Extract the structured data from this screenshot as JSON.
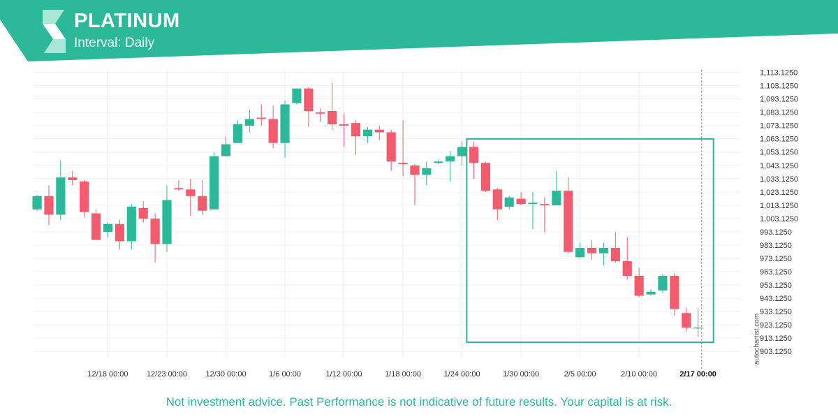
{
  "header": {
    "title": "PLATINUM",
    "interval": "Interval: Daily",
    "colors": {
      "banner": "#2bb99a",
      "logo_light": "#a8e6d6"
    }
  },
  "footer": {
    "disclaimer": "Not investment advice. Past Performance is not indicative of future results. Your capital is at risk."
  },
  "watermark": "autochartist.com",
  "chart_data": {
    "type": "candlestick",
    "title": "PLATINUM",
    "x_tick_labels": [
      {
        "label": "12/18 00:00",
        "index": 6
      },
      {
        "label": "12/23 00:00",
        "index": 11
      },
      {
        "label": "12/30 00:00",
        "index": 16
      },
      {
        "label": "1/6 00:00",
        "index": 21
      },
      {
        "label": "1/12 00:00",
        "index": 26
      },
      {
        "label": "1/18 00:00",
        "index": 31
      },
      {
        "label": "1/24 00:00",
        "index": 36
      },
      {
        "label": "1/30 00:00",
        "index": 41
      },
      {
        "label": "2/5 00:00",
        "index": 46
      },
      {
        "label": "2/10 00:00",
        "index": 51
      },
      {
        "label": "2/17 00:00",
        "index": 56,
        "highlight": true
      }
    ],
    "y_ticks": [
      903.125,
      913.125,
      923.125,
      933.125,
      943.125,
      953.125,
      963.125,
      973.125,
      983.125,
      993.125,
      1003.125,
      1013.125,
      1023.125,
      1033.125,
      1043.125,
      1053.125,
      1063.125,
      1073.125,
      1083.125,
      1093.125,
      1103.125,
      1113.125
    ],
    "y_tick_labels": [
      "903.1250",
      "913.1250",
      "923.1250",
      "933.1250",
      "943.1250",
      "953.1250",
      "963.1250",
      "973.1250",
      "983.1250",
      "993.1250",
      "1,003.1250",
      "1,013.1250",
      "1,023.1250",
      "1,033.1250",
      "1,043.1250",
      "1,053.1250",
      "1,063.1250",
      "1,073.1250",
      "1,083.1250",
      "1,093.1250",
      "1,103.1250",
      "1,113.1250"
    ],
    "ylim": [
      898.5,
      1115
    ],
    "index_range": [
      -0.3,
      57.5
    ],
    "grid": true,
    "colors": {
      "up": "#2bb99a",
      "down": "#f25c6e",
      "box": "#2bb99a",
      "axis_text": "#333333"
    },
    "candles": [
      {
        "o": 1010,
        "h": 1021,
        "l": 1009,
        "c": 1020
      },
      {
        "o": 1020,
        "h": 1028,
        "l": 998,
        "c": 1006
      },
      {
        "o": 1006,
        "h": 1047,
        "l": 1002,
        "c": 1034
      },
      {
        "o": 1034,
        "h": 1039,
        "l": 1028,
        "c": 1032
      },
      {
        "o": 1031,
        "h": 1032,
        "l": 1004,
        "c": 1008
      },
      {
        "o": 1007,
        "h": 1010,
        "l": 987,
        "c": 987
      },
      {
        "o": 993,
        "h": 1000,
        "l": 989,
        "c": 999
      },
      {
        "o": 999,
        "h": 1002,
        "l": 980,
        "c": 986
      },
      {
        "o": 986,
        "h": 1014,
        "l": 980,
        "c": 1012
      },
      {
        "o": 1011,
        "h": 1016,
        "l": 1000,
        "c": 1003
      },
      {
        "o": 1003,
        "h": 1007,
        "l": 970,
        "c": 984
      },
      {
        "o": 984,
        "h": 1028,
        "l": 978,
        "c": 1017
      },
      {
        "o": 1026,
        "h": 1032,
        "l": 1024,
        "c": 1025
      },
      {
        "o": 1025,
        "h": 1033,
        "l": 1005,
        "c": 1020
      },
      {
        "o": 1020,
        "h": 1032,
        "l": 1006,
        "c": 1009
      },
      {
        "o": 1010,
        "h": 1053,
        "l": 1010,
        "c": 1050
      },
      {
        "o": 1050,
        "h": 1065,
        "l": 1050,
        "c": 1059
      },
      {
        "o": 1060,
        "h": 1077,
        "l": 1060,
        "c": 1074
      },
      {
        "o": 1073,
        "h": 1085,
        "l": 1068,
        "c": 1078
      },
      {
        "o": 1079,
        "h": 1089,
        "l": 1073,
        "c": 1078
      },
      {
        "o": 1078,
        "h": 1088,
        "l": 1056,
        "c": 1060
      },
      {
        "o": 1060,
        "h": 1092,
        "l": 1049,
        "c": 1089
      },
      {
        "o": 1090,
        "h": 1101,
        "l": 1089,
        "c": 1101
      },
      {
        "o": 1101,
        "h": 1102,
        "l": 1072,
        "c": 1084
      },
      {
        "o": 1083,
        "h": 1086,
        "l": 1076,
        "c": 1082
      },
      {
        "o": 1084,
        "h": 1105,
        "l": 1070,
        "c": 1074
      },
      {
        "o": 1074,
        "h": 1082,
        "l": 1057,
        "c": 1073
      },
      {
        "o": 1075,
        "h": 1077,
        "l": 1051,
        "c": 1065
      },
      {
        "o": 1065,
        "h": 1072,
        "l": 1060,
        "c": 1070
      },
      {
        "o": 1070,
        "h": 1073,
        "l": 1062,
        "c": 1068
      },
      {
        "o": 1068,
        "h": 1070,
        "l": 1039,
        "c": 1046
      },
      {
        "o": 1045,
        "h": 1077,
        "l": 1035,
        "c": 1044
      },
      {
        "o": 1043,
        "h": 1044,
        "l": 1013,
        "c": 1036
      },
      {
        "o": 1036,
        "h": 1046,
        "l": 1028,
        "c": 1041
      },
      {
        "o": 1045,
        "h": 1047,
        "l": 1044,
        "c": 1046
      },
      {
        "o": 1046,
        "h": 1054,
        "l": 1031,
        "c": 1050
      },
      {
        "o": 1050,
        "h": 1061,
        "l": 1043,
        "c": 1057
      },
      {
        "o": 1057,
        "h": 1061,
        "l": 1033,
        "c": 1045
      },
      {
        "o": 1045,
        "h": 1046,
        "l": 1023,
        "c": 1024
      },
      {
        "o": 1025,
        "h": 1026,
        "l": 1002,
        "c": 1010
      },
      {
        "o": 1012,
        "h": 1020,
        "l": 1010,
        "c": 1019
      },
      {
        "o": 1018,
        "h": 1023,
        "l": 1013,
        "c": 1014
      },
      {
        "o": 1014,
        "h": 1023,
        "l": 995,
        "c": 1015
      },
      {
        "o": 1014,
        "h": 1019,
        "l": 993,
        "c": 1013
      },
      {
        "o": 1013,
        "h": 1039,
        "l": 1013,
        "c": 1024
      },
      {
        "o": 1024,
        "h": 1034,
        "l": 977,
        "c": 978
      },
      {
        "o": 974,
        "h": 985,
        "l": 973,
        "c": 981
      },
      {
        "o": 981,
        "h": 987,
        "l": 972,
        "c": 977
      },
      {
        "o": 977,
        "h": 985,
        "l": 968,
        "c": 981
      },
      {
        "o": 981,
        "h": 993,
        "l": 970,
        "c": 971
      },
      {
        "o": 971,
        "h": 989,
        "l": 957,
        "c": 960
      },
      {
        "o": 960,
        "h": 966,
        "l": 944,
        "c": 945
      },
      {
        "o": 946,
        "h": 950,
        "l": 945,
        "c": 948
      },
      {
        "o": 949,
        "h": 961,
        "l": 947,
        "c": 960
      },
      {
        "o": 960,
        "h": 962,
        "l": 930,
        "c": 935
      },
      {
        "o": 932,
        "h": 936,
        "l": 918,
        "c": 921
      },
      {
        "o": 921,
        "h": 936,
        "l": 914,
        "c": 921
      }
    ],
    "pattern_box": {
      "start_index": 36.4,
      "end_index": 57.3,
      "price_top": 1063.0,
      "price_bottom": 910.0
    },
    "current_time_index": 56.3
  }
}
